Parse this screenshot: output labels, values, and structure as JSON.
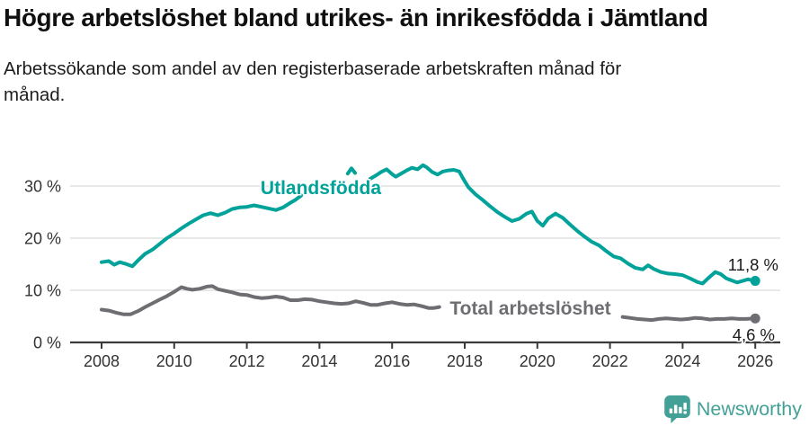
{
  "title": "Högre arbetslöshet bland utrikes- än inrikesfödda i Jämtland",
  "subtitle": "Arbetssökande som andel av den registerbaserade arbetskraften månad för månad.",
  "branding": {
    "name": "Newsworthy",
    "color": "#43a096",
    "icon": "bar-chart-speech-bubble"
  },
  "colors": {
    "accent_teal": "#00a29a",
    "neutral_gray": "#6d6d72",
    "gridline": "#d9d9d9",
    "axis": "#3a3a3a",
    "axis_text": "#333333",
    "end_label_text": "#1a1a1a"
  },
  "chart_data": {
    "type": "line",
    "title": "",
    "xlabel": "",
    "ylabel": "",
    "grid": "horizontal",
    "legend_position": "direct-line-labels",
    "x_axis": {
      "range": [
        2007.1,
        2026.7
      ],
      "ticks": [
        {
          "value": 2008,
          "label": "2008"
        },
        {
          "value": 2010,
          "label": "2010"
        },
        {
          "value": 2012,
          "label": "2012"
        },
        {
          "value": 2014,
          "label": "2014"
        },
        {
          "value": 2016,
          "label": "2016"
        },
        {
          "value": 2018,
          "label": "2018"
        },
        {
          "value": 2020,
          "label": "2020"
        },
        {
          "value": 2022,
          "label": "2022"
        },
        {
          "value": 2024,
          "label": "2024"
        },
        {
          "value": 2026,
          "label": "2026"
        }
      ]
    },
    "y_axis": {
      "range": [
        0,
        37
      ],
      "unit": "%",
      "gridlines": [
        10,
        20,
        30
      ],
      "ticks": [
        {
          "value": 0,
          "label": "0 %"
        },
        {
          "value": 10,
          "label": "10 %"
        },
        {
          "value": 20,
          "label": "20 %"
        },
        {
          "value": 30,
          "label": "30 %"
        }
      ]
    },
    "series": [
      {
        "name": "Utlandsfödda",
        "color": "#00a29a",
        "end_label": "11,8 %",
        "end_point": [
          2026.0,
          11.8
        ],
        "segments": [
          [
            [
              2008.0,
              15.4
            ],
            [
              2008.2,
              15.6
            ],
            [
              2008.35,
              14.9
            ],
            [
              2008.5,
              15.4
            ],
            [
              2008.65,
              15.1
            ],
            [
              2008.85,
              14.6
            ],
            [
              2009.0,
              15.7
            ],
            [
              2009.2,
              17.0
            ],
            [
              2009.4,
              17.8
            ],
            [
              2009.6,
              18.9
            ],
            [
              2009.8,
              20.0
            ],
            [
              2010.0,
              20.9
            ],
            [
              2010.2,
              21.9
            ],
            [
              2010.4,
              22.8
            ],
            [
              2010.6,
              23.6
            ],
            [
              2010.8,
              24.4
            ],
            [
              2011.0,
              24.8
            ],
            [
              2011.2,
              24.4
            ],
            [
              2011.4,
              24.9
            ],
            [
              2011.6,
              25.6
            ],
            [
              2011.8,
              25.9
            ],
            [
              2012.0,
              26.0
            ],
            [
              2012.2,
              26.3
            ],
            [
              2012.4,
              26.0
            ],
            [
              2012.6,
              25.7
            ],
            [
              2012.8,
              25.4
            ],
            [
              2013.0,
              25.9
            ],
            [
              2013.2,
              26.8
            ],
            [
              2013.35,
              27.4
            ],
            [
              2013.5,
              28.2
            ]
          ],
          [
            [
              2014.78,
              32.4
            ],
            [
              2014.88,
              33.4
            ],
            [
              2014.98,
              32.5
            ]
          ],
          [
            [
              2015.4,
              31.4
            ],
            [
              2015.55,
              32.0
            ],
            [
              2015.7,
              32.7
            ],
            [
              2015.85,
              33.2
            ],
            [
              2016.0,
              32.3
            ],
            [
              2016.1,
              31.8
            ],
            [
              2016.25,
              32.4
            ],
            [
              2016.4,
              33.0
            ],
            [
              2016.55,
              33.5
            ],
            [
              2016.7,
              33.2
            ],
            [
              2016.85,
              34.0
            ],
            [
              2016.95,
              33.6
            ],
            [
              2017.1,
              32.7
            ],
            [
              2017.25,
              32.2
            ],
            [
              2017.4,
              32.8
            ],
            [
              2017.55,
              33.0
            ],
            [
              2017.7,
              33.1
            ],
            [
              2017.85,
              32.8
            ],
            [
              2017.95,
              31.5
            ],
            [
              2018.1,
              29.8
            ],
            [
              2018.3,
              28.4
            ],
            [
              2018.5,
              27.3
            ],
            [
              2018.7,
              26.1
            ],
            [
              2018.9,
              25.0
            ],
            [
              2019.1,
              24.1
            ],
            [
              2019.3,
              23.3
            ],
            [
              2019.5,
              23.7
            ],
            [
              2019.7,
              24.7
            ],
            [
              2019.85,
              25.1
            ],
            [
              2020.0,
              23.3
            ],
            [
              2020.15,
              22.4
            ],
            [
              2020.3,
              23.8
            ],
            [
              2020.5,
              24.7
            ],
            [
              2020.7,
              23.9
            ],
            [
              2020.9,
              22.6
            ],
            [
              2021.1,
              21.4
            ],
            [
              2021.3,
              20.3
            ],
            [
              2021.5,
              19.3
            ],
            [
              2021.7,
              18.6
            ],
            [
              2021.9,
              17.5
            ],
            [
              2022.1,
              16.5
            ],
            [
              2022.3,
              16.1
            ],
            [
              2022.5,
              15.1
            ],
            [
              2022.7,
              14.3
            ],
            [
              2022.9,
              14.0
            ],
            [
              2023.05,
              14.8
            ],
            [
              2023.2,
              14.1
            ],
            [
              2023.4,
              13.5
            ],
            [
              2023.6,
              13.2
            ],
            [
              2023.8,
              13.1
            ],
            [
              2024.0,
              12.9
            ],
            [
              2024.2,
              12.3
            ],
            [
              2024.4,
              11.6
            ],
            [
              2024.55,
              11.3
            ],
            [
              2024.7,
              12.3
            ],
            [
              2024.9,
              13.5
            ],
            [
              2025.05,
              13.1
            ],
            [
              2025.2,
              12.3
            ],
            [
              2025.35,
              11.9
            ],
            [
              2025.5,
              11.5
            ],
            [
              2025.65,
              11.8
            ],
            [
              2025.8,
              12.1
            ],
            [
              2026.0,
              11.8
            ]
          ]
        ]
      },
      {
        "name": "Total arbetslöshet",
        "color": "#6d6d72",
        "end_label": "4,6 %",
        "end_point": [
          2026.0,
          4.6
        ],
        "segments": [
          [
            [
              2008.0,
              6.3
            ],
            [
              2008.2,
              6.1
            ],
            [
              2008.4,
              5.7
            ],
            [
              2008.6,
              5.4
            ],
            [
              2008.8,
              5.4
            ],
            [
              2009.0,
              6.0
            ],
            [
              2009.2,
              6.8
            ],
            [
              2009.4,
              7.5
            ],
            [
              2009.6,
              8.2
            ],
            [
              2009.8,
              8.9
            ],
            [
              2010.0,
              9.7
            ],
            [
              2010.2,
              10.6
            ],
            [
              2010.35,
              10.3
            ],
            [
              2010.5,
              10.1
            ],
            [
              2010.7,
              10.3
            ],
            [
              2010.9,
              10.7
            ],
            [
              2011.05,
              10.8
            ],
            [
              2011.2,
              10.2
            ],
            [
              2011.4,
              9.9
            ],
            [
              2011.6,
              9.6
            ],
            [
              2011.8,
              9.2
            ],
            [
              2012.0,
              9.1
            ],
            [
              2012.2,
              8.7
            ],
            [
              2012.4,
              8.5
            ],
            [
              2012.6,
              8.6
            ],
            [
              2012.8,
              8.8
            ],
            [
              2013.0,
              8.6
            ],
            [
              2013.2,
              8.1
            ],
            [
              2013.4,
              8.1
            ],
            [
              2013.6,
              8.3
            ],
            [
              2013.8,
              8.2
            ],
            [
              2014.0,
              7.9
            ],
            [
              2014.2,
              7.7
            ],
            [
              2014.4,
              7.5
            ],
            [
              2014.6,
              7.4
            ],
            [
              2014.8,
              7.5
            ],
            [
              2015.0,
              7.9
            ],
            [
              2015.2,
              7.6
            ],
            [
              2015.4,
              7.2
            ],
            [
              2015.6,
              7.2
            ],
            [
              2015.8,
              7.5
            ],
            [
              2016.0,
              7.7
            ],
            [
              2016.2,
              7.4
            ],
            [
              2016.4,
              7.2
            ],
            [
              2016.6,
              7.3
            ],
            [
              2016.8,
              7.0
            ],
            [
              2017.0,
              6.6
            ],
            [
              2017.15,
              6.6
            ],
            [
              2017.3,
              6.8
            ]
          ],
          [
            [
              2022.35,
              4.9
            ],
            [
              2022.55,
              4.7
            ],
            [
              2022.75,
              4.5
            ],
            [
              2022.95,
              4.4
            ],
            [
              2023.15,
              4.3
            ],
            [
              2023.35,
              4.5
            ],
            [
              2023.55,
              4.6
            ],
            [
              2023.75,
              4.5
            ],
            [
              2023.95,
              4.4
            ],
            [
              2024.15,
              4.5
            ],
            [
              2024.35,
              4.7
            ],
            [
              2024.55,
              4.6
            ],
            [
              2024.75,
              4.4
            ],
            [
              2024.95,
              4.5
            ],
            [
              2025.15,
              4.5
            ],
            [
              2025.35,
              4.6
            ],
            [
              2025.55,
              4.5
            ],
            [
              2025.75,
              4.5
            ],
            [
              2026.0,
              4.6
            ]
          ]
        ]
      }
    ]
  }
}
